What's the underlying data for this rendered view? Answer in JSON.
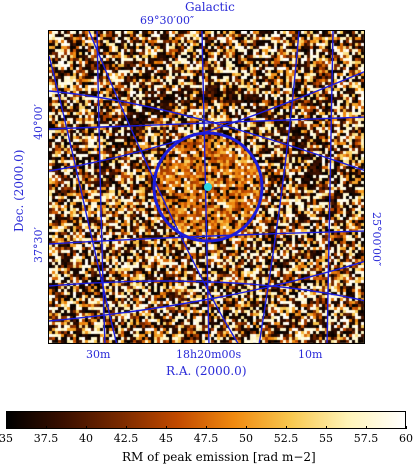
{
  "figure": {
    "top_title": "Galactic",
    "top_coord_label": "69°30′00″",
    "right_coord_label": "25°00′00″",
    "left_axis": {
      "title": "Dec. (2000.0)",
      "ticks": [
        "40°00′",
        "37°30′"
      ]
    },
    "bottom_axis": {
      "title": "R.A. (2000.0)",
      "ticks": [
        "30m",
        "18h20m00s",
        "10m"
      ]
    },
    "marker": {
      "color": "#2bd4e0"
    },
    "circle_color": "#1c1cdc",
    "grid_color": "#1c1cdc"
  },
  "colorbar": {
    "title": "RM of peak emission [rad m−2]",
    "ticks": [
      "35",
      "37.5",
      "40",
      "42.5",
      "45",
      "47.5",
      "50",
      "52.5",
      "55",
      "57.5",
      "60"
    ],
    "range": [
      35,
      60
    ],
    "colormap": [
      "#000000",
      "#3a0f00",
      "#7a2a00",
      "#c24a00",
      "#f08a10",
      "#f8c850",
      "#fff4b8",
      "#ffffff"
    ]
  }
}
